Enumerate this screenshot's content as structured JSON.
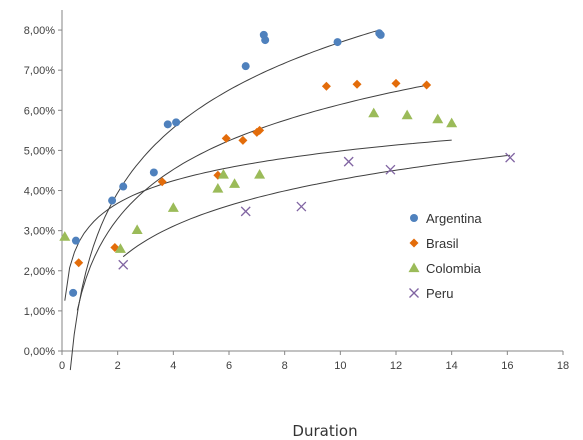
{
  "chart_data": {
    "type": "scatter",
    "title": "",
    "xlabel": "Duration",
    "ylabel": "",
    "xlim": [
      0,
      18
    ],
    "ylim": [
      0,
      0.085
    ],
    "x_ticks": [
      0,
      2,
      4,
      6,
      8,
      10,
      12,
      14,
      16,
      18
    ],
    "x_tick_labels": [
      "0",
      "2",
      "4",
      "6",
      "8",
      "10",
      "12",
      "14",
      "16",
      "18"
    ],
    "y_ticks": [
      0,
      0.01,
      0.02,
      0.03,
      0.04,
      0.05,
      0.06,
      0.07,
      0.08
    ],
    "y_tick_labels": [
      "0,00%",
      "1,00%",
      "2,00%",
      "3,00%",
      "4,00%",
      "5,00%",
      "6,00%",
      "7,00%",
      "8,00%"
    ],
    "grid": false,
    "legend_position": "right",
    "series": [
      {
        "name": "Argentina",
        "marker": "circle",
        "color": "#4f81bd",
        "points": [
          [
            0.4,
            0.0145
          ],
          [
            0.5,
            0.0275
          ],
          [
            1.8,
            0.0375
          ],
          [
            2.2,
            0.041
          ],
          [
            3.3,
            0.0445
          ],
          [
            3.8,
            0.0565
          ],
          [
            4.1,
            0.057
          ],
          [
            6.6,
            0.071
          ],
          [
            7.25,
            0.0788
          ],
          [
            7.3,
            0.0775
          ],
          [
            9.9,
            0.077
          ],
          [
            11.4,
            0.0792
          ],
          [
            11.45,
            0.0788
          ]
        ],
        "trendline": {
          "type": "log",
          "a": 0.0233,
          "b": 0.0233,
          "x_range": [
            0.3,
            11.4
          ]
        }
      },
      {
        "name": "Brasil",
        "marker": "diamond",
        "color": "#e36c0a",
        "points": [
          [
            0.6,
            0.022
          ],
          [
            1.9,
            0.0258
          ],
          [
            3.6,
            0.0422
          ],
          [
            5.6,
            0.0438
          ],
          [
            5.9,
            0.053
          ],
          [
            6.5,
            0.0525
          ],
          [
            7.0,
            0.0545
          ],
          [
            7.1,
            0.055
          ],
          [
            9.5,
            0.066
          ],
          [
            10.6,
            0.0665
          ],
          [
            12.0,
            0.0667
          ],
          [
            13.1,
            0.0663
          ]
        ],
        "trendline": {
          "type": "log",
          "a": 0.0207,
          "b": 0.0177,
          "x_range": [
            0.55,
            13.2
          ]
        }
      },
      {
        "name": "Colombia",
        "marker": "triangle",
        "color": "#9bbb59",
        "points": [
          [
            0.1,
            0.0285
          ],
          [
            2.1,
            0.0255
          ],
          [
            2.7,
            0.0302
          ],
          [
            4.0,
            0.0357
          ],
          [
            5.6,
            0.0405
          ],
          [
            5.8,
            0.044
          ],
          [
            6.2,
            0.0417
          ],
          [
            7.1,
            0.044
          ],
          [
            11.2,
            0.0593
          ],
          [
            12.4,
            0.0588
          ],
          [
            13.5,
            0.0578
          ],
          [
            14.0,
            0.0568
          ]
        ],
        "trendline": {
          "type": "log",
          "a": 0.0312,
          "b": 0.0081,
          "x_range": [
            0.1,
            14.0
          ]
        }
      },
      {
        "name": "Peru",
        "marker": "x",
        "color": "#8064a2",
        "points": [
          [
            2.2,
            0.0215
          ],
          [
            6.6,
            0.0348
          ],
          [
            8.6,
            0.036
          ],
          [
            10.3,
            0.0472
          ],
          [
            11.8,
            0.0452
          ],
          [
            16.1,
            0.0482
          ]
        ],
        "trendline": {
          "type": "log",
          "a": 0.0135,
          "b": 0.0127,
          "x_range": [
            2.2,
            16.1
          ]
        }
      }
    ]
  }
}
